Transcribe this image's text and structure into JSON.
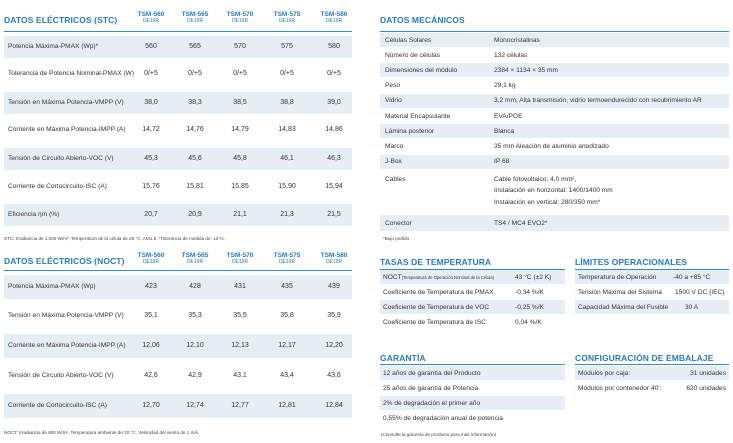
{
  "stc": {
    "title": "DATOS ELÉCTRICOS (STC)",
    "models": [
      {
        "name": "TSM-560",
        "sub": "DE19R"
      },
      {
        "name": "TSM-565",
        "sub": "DE19R"
      },
      {
        "name": "TSM-570",
        "sub": "DE19R"
      },
      {
        "name": "TSM-575",
        "sub": "DE19R"
      },
      {
        "name": "TSM-580",
        "sub": "DE19R"
      }
    ],
    "rows": [
      {
        "label": "Potencia Máxima-PMAX (Wp)*",
        "values": [
          "560",
          "565",
          "570",
          "575",
          "580"
        ]
      },
      {
        "label": "Tolerancia de Potencia Nominal-PMAX (W)",
        "values": [
          "0/+5",
          "0/+5",
          "0/+5",
          "0/+5",
          "0/+5"
        ]
      },
      {
        "label": "Tensión en Máxima Potencia-VMPP (V)",
        "values": [
          "38,0",
          "38,3",
          "38,5",
          "38,8",
          "39,0"
        ]
      },
      {
        "label": "Corriente en Máxima Potencia-IMPP (A)",
        "values": [
          "14,72",
          "14,76",
          "14,79",
          "14,83",
          "14,86"
        ]
      },
      {
        "label": "Tensión de Circuito Abierto-VOC (V)",
        "values": [
          "45,3",
          "45,6",
          "45,8",
          "46,1",
          "46,3"
        ]
      },
      {
        "label": "Corriente de Cortocircuito-ISC (A)",
        "values": [
          "15,76",
          "15,81",
          "15,85",
          "15,90",
          "15,94"
        ]
      },
      {
        "label": "Eficiencia ηm (%)",
        "values": [
          "20,7",
          "20,9",
          "21,1",
          "21,3",
          "21,5"
        ]
      }
    ],
    "note": "STC: Irradiancia de 1.000 W/m², Temperatura de la célula de 25 °C, AM1.5. *Tolerancia de medida de: ±3 %."
  },
  "noct": {
    "title": "DATOS ELÉCTRICOS (NOCT)",
    "models": [
      {
        "name": "TSM-560",
        "sub": "DE19R"
      },
      {
        "name": "TSM-565",
        "sub": "DE19R"
      },
      {
        "name": "TSM-570",
        "sub": "DE19R"
      },
      {
        "name": "TSM-575",
        "sub": "DE19R"
      },
      {
        "name": "TSM-580",
        "sub": "DE19R"
      }
    ],
    "rows": [
      {
        "label": "Potencia Máxima-PMAX (Wp)",
        "values": [
          "423",
          "428",
          "431",
          "435",
          "439"
        ]
      },
      {
        "label": "Tensión en Máxima Potencia-VMPP (V)",
        "values": [
          "35,1",
          "35,3",
          "35,5",
          "35,8",
          "35,9"
        ]
      },
      {
        "label": "Corriente en Máxima Potencia-IMPP (A)",
        "values": [
          "12,06",
          "12,10",
          "12,13",
          "12,17",
          "12,20"
        ]
      },
      {
        "label": "Tensión de Circuito Abierto-VOC (V)",
        "values": [
          "42,6",
          "42,9",
          "43,1",
          "43,4",
          "43,6"
        ]
      },
      {
        "label": "Corriente de Cortocircuito-ISC (A)",
        "values": [
          "12,70",
          "12,74",
          "12,77",
          "12,81",
          "12,84"
        ]
      }
    ],
    "note": "NOCT: Irradiancia de 800 W/m², Temperatura ambiente de 20 °C, Velocidad del viento de 1 m/s."
  },
  "mech": {
    "title": "DATOS MECÁNICOS",
    "rows": [
      {
        "k": "Células Solares",
        "v": "Monocristalinas"
      },
      {
        "k": "Número de células",
        "v": "132 células"
      },
      {
        "k": "Dimensiones del módulo",
        "v": "2384 × 1134 × 35 mm"
      },
      {
        "k": "Peso",
        "v": "29,1 kg"
      },
      {
        "k": "Vidrio",
        "v": "3,2 mm, Alta transmisión, vidrio termoendurecido con recubrimiento AR"
      },
      {
        "k": "Material Encapsulante",
        "v": "EVA/POE"
      },
      {
        "k": "Lámina posterior",
        "v": "Blanca"
      },
      {
        "k": "Marco",
        "v": "35 mm Aleación de aluminio anodizado"
      },
      {
        "k": "J-Box",
        "v": "IP 68"
      }
    ],
    "cables_label": "Cables",
    "cables_lines": [
      "Cable fotovoltaico: 4,0 mm²,",
      "Instalación en horizontal: 1400/1400 mm",
      "Instalación en vertical: 280/350 mm*"
    ],
    "connector_label": "Conector",
    "connector_value": "TS4 / MC4 EVO2*",
    "note": "*Bajo pedido"
  },
  "temp": {
    "title": "TASAS DE TEMPERATURA",
    "rows": [
      {
        "k": "NOCT",
        "k_small": "(Temperatura de Operación Nominal de la Célula)",
        "v": "43 °C (±2 K)"
      },
      {
        "k": "Coeficiente de Temperatura de PMAX",
        "v": "-0,34 %/K"
      },
      {
        "k": "Coeficiente de Temperatura de VOC",
        "v": "-0,25 %/K"
      },
      {
        "k": "Coeficiente de Temperatura de ISC",
        "v": "0,04 %/K"
      }
    ]
  },
  "limits": {
    "title": "LÍMITES OPERACIONALES",
    "rows": [
      {
        "k": "Temperatura de Operación",
        "v": "-40 a +85 °C"
      },
      {
        "k": "Tensión Máxima del Sistema",
        "v": "1500 V DC (IEC)"
      },
      {
        "k": "Capacidad Máxima del Fusible",
        "v": "30 A"
      }
    ]
  },
  "warranty": {
    "title": "GARANTÍA",
    "rows": [
      "12 años de garantía del Producto",
      "25 años de garantía de Potencia",
      "2% de degradación el primer año",
      "0,55% de degradación anual de potencia"
    ],
    "note": "(Consulte la garantía de producto para más información)"
  },
  "packing": {
    "title": "CONFIGURACIÓN DE EMBALAJE",
    "rows": [
      {
        "k": "Módulos por caja:",
        "v": "31 unidades"
      },
      {
        "k": "Módulos por contenedor 40':",
        "v": "620 unidades"
      }
    ]
  },
  "colors": {
    "accent": "#2a7ab8",
    "shade": "#e6eef5",
    "text": "#333333"
  }
}
